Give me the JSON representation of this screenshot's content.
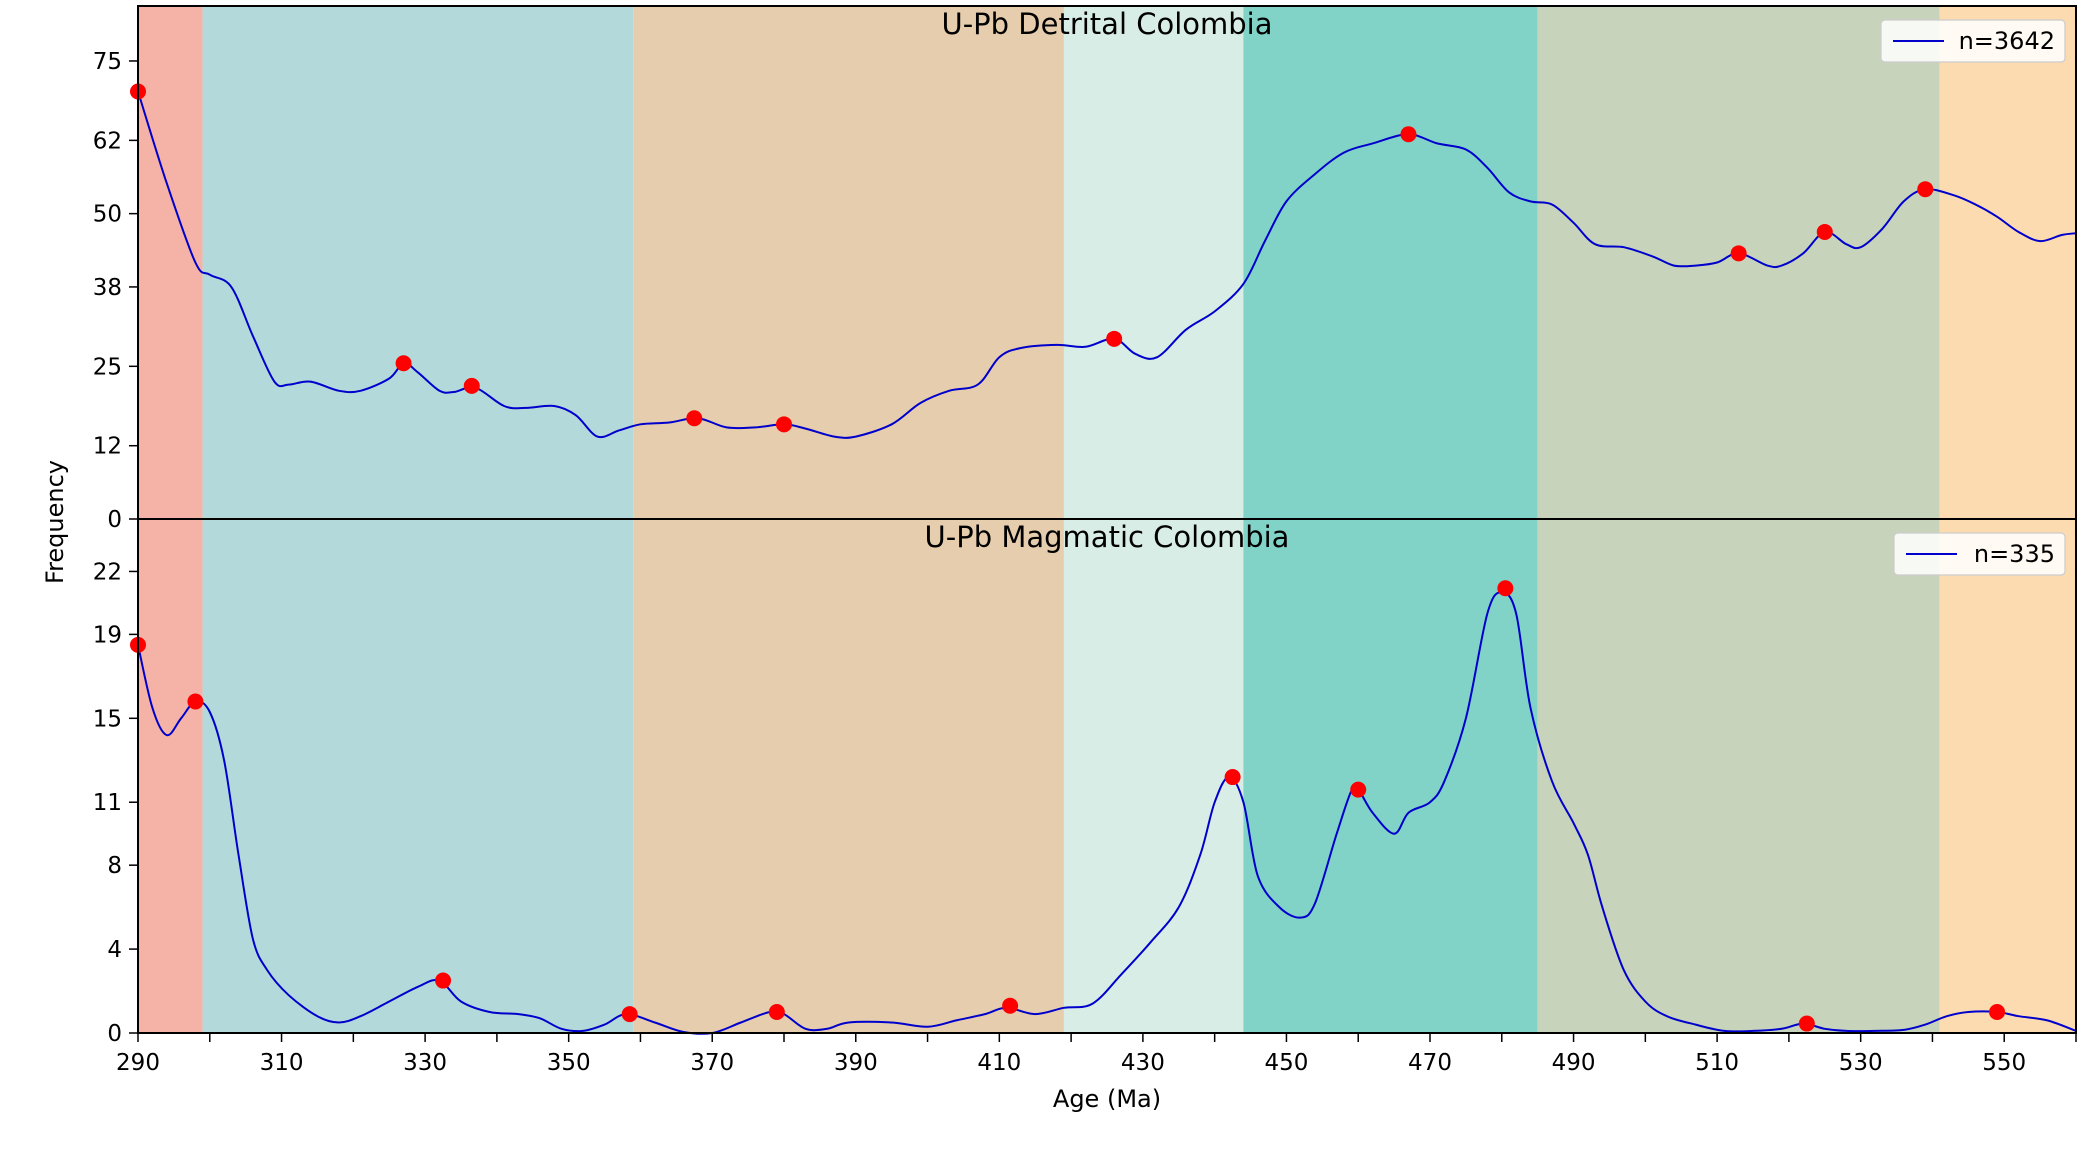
{
  "chart_data": {
    "type": "line",
    "xlabel": "Age (Ma)",
    "ylabel": "Frequency",
    "xlim": [
      290,
      560
    ],
    "x_ticks": [
      290,
      310,
      330,
      350,
      370,
      390,
      410,
      430,
      450,
      470,
      490,
      510,
      530,
      550
    ],
    "x_minor_step": 10,
    "line_color": "#0000cc",
    "peak_color": "#ff0000",
    "bands": [
      {
        "from": 290,
        "to": 299,
        "color": "#f4b3a6"
      },
      {
        "from": 299,
        "to": 359,
        "color": "#b4d9da"
      },
      {
        "from": 359,
        "to": 419,
        "color": "#e6cdad"
      },
      {
        "from": 419,
        "to": 444,
        "color": "#d8ede5"
      },
      {
        "from": 444,
        "to": 485,
        "color": "#81d3c8"
      },
      {
        "from": 485,
        "to": 541,
        "color": "#c7d3bb"
      },
      {
        "from": 541,
        "to": 560,
        "color": "#fddbb0"
      }
    ],
    "panels": [
      {
        "title": "U-Pb Detrital Colombia",
        "legend": "n=3642",
        "ylim": [
          0,
          84
        ],
        "y_ticks": [
          0,
          12,
          25,
          38,
          50,
          62,
          75
        ],
        "curve": [
          [
            290,
            70
          ],
          [
            294,
            55
          ],
          [
            298,
            42
          ],
          [
            300,
            40
          ],
          [
            303,
            38
          ],
          [
            306,
            30
          ],
          [
            309,
            22.5
          ],
          [
            311,
            22
          ],
          [
            314,
            22.5
          ],
          [
            318,
            21
          ],
          [
            321,
            21
          ],
          [
            325,
            23
          ],
          [
            327,
            25.5
          ],
          [
            329,
            24
          ],
          [
            332,
            21
          ],
          [
            334,
            20.8
          ],
          [
            337,
            21.5
          ],
          [
            341,
            18.5
          ],
          [
            344,
            18.2
          ],
          [
            348,
            18.5
          ],
          [
            351,
            17
          ],
          [
            354,
            13.5
          ],
          [
            357,
            14.5
          ],
          [
            360,
            15.5
          ],
          [
            364,
            15.8
          ],
          [
            368,
            16.5
          ],
          [
            372,
            15
          ],
          [
            376,
            15
          ],
          [
            380,
            15.5
          ],
          [
            383,
            14.8
          ],
          [
            387,
            13.5
          ],
          [
            390,
            13.5
          ],
          [
            395,
            15.5
          ],
          [
            399,
            19
          ],
          [
            403,
            21
          ],
          [
            407,
            22
          ],
          [
            410,
            26.5
          ],
          [
            413,
            28
          ],
          [
            418,
            28.5
          ],
          [
            422,
            28.2
          ],
          [
            426,
            29.5
          ],
          [
            429,
            27
          ],
          [
            432,
            26.5
          ],
          [
            436,
            31
          ],
          [
            440,
            34
          ],
          [
            444,
            38.5
          ],
          [
            447,
            45.5
          ],
          [
            450,
            52
          ],
          [
            454,
            56.5
          ],
          [
            458,
            60
          ],
          [
            462,
            61.5
          ],
          [
            467,
            63
          ],
          [
            471,
            61.5
          ],
          [
            475,
            60.5
          ],
          [
            478,
            57.5
          ],
          [
            481,
            53.5
          ],
          [
            484,
            52
          ],
          [
            487,
            51.5
          ],
          [
            490,
            48.5
          ],
          [
            493,
            45
          ],
          [
            497,
            44.5
          ],
          [
            501,
            43
          ],
          [
            504,
            41.5
          ],
          [
            507,
            41.5
          ],
          [
            510,
            42
          ],
          [
            513,
            43.5
          ],
          [
            517,
            41.5
          ],
          [
            519,
            41.5
          ],
          [
            522,
            43.5
          ],
          [
            525,
            47
          ],
          [
            528,
            45
          ],
          [
            530,
            44.5
          ],
          [
            533,
            47.5
          ],
          [
            536,
            52
          ],
          [
            539,
            54
          ],
          [
            543,
            53
          ],
          [
            546,
            51.5
          ],
          [
            549,
            49.5
          ],
          [
            552,
            47
          ],
          [
            555,
            45.5
          ],
          [
            558,
            46.5
          ],
          [
            560,
            46.8
          ]
        ],
        "peaks": [
          [
            290,
            70
          ],
          [
            327,
            25.5
          ],
          [
            336.5,
            21.8
          ],
          [
            367.5,
            16.5
          ],
          [
            380,
            15.5
          ],
          [
            426,
            29.5
          ],
          [
            467,
            63
          ],
          [
            513,
            43.5
          ],
          [
            525,
            47
          ],
          [
            539,
            54
          ]
        ]
      },
      {
        "title": "U-Pb Magmatic Colombia",
        "legend": "n=335",
        "ylim": [
          0,
          24.5
        ],
        "y_ticks": [
          0,
          4,
          8,
          11,
          15,
          19,
          22
        ],
        "curve": [
          [
            290,
            18.5
          ],
          [
            292,
            15.5
          ],
          [
            294,
            14.2
          ],
          [
            296,
            15
          ],
          [
            298,
            15.8
          ],
          [
            300,
            15.3
          ],
          [
            302,
            13
          ],
          [
            304,
            8.5
          ],
          [
            306,
            4.5
          ],
          [
            308,
            3
          ],
          [
            311,
            1.8
          ],
          [
            315,
            0.8
          ],
          [
            318,
            0.5
          ],
          [
            321,
            0.8
          ],
          [
            325,
            1.5
          ],
          [
            329,
            2.2
          ],
          [
            332,
            2.5
          ],
          [
            335,
            1.5
          ],
          [
            339,
            1
          ],
          [
            343,
            0.9
          ],
          [
            346,
            0.7
          ],
          [
            349,
            0.2
          ],
          [
            352,
            0.1
          ],
          [
            355,
            0.4
          ],
          [
            358,
            0.9
          ],
          [
            362,
            0.5
          ],
          [
            366,
            0.05
          ],
          [
            370,
            0
          ],
          [
            374,
            0.5
          ],
          [
            378,
            1
          ],
          [
            380,
            0.9
          ],
          [
            383,
            0.2
          ],
          [
            386,
            0.2
          ],
          [
            389,
            0.5
          ],
          [
            395,
            0.5
          ],
          [
            400,
            0.3
          ],
          [
            404,
            0.6
          ],
          [
            408,
            0.9
          ],
          [
            411,
            1.2
          ],
          [
            415,
            0.9
          ],
          [
            419,
            1.2
          ],
          [
            423,
            1.4
          ],
          [
            427,
            2.8
          ],
          [
            431,
            4.3
          ],
          [
            435,
            6
          ],
          [
            438,
            8.5
          ],
          [
            440,
            11
          ],
          [
            442,
            12.2
          ],
          [
            444,
            11
          ],
          [
            446,
            7.5
          ],
          [
            449,
            6
          ],
          [
            452,
            5.5
          ],
          [
            454,
            6.2
          ],
          [
            457,
            9.5
          ],
          [
            459,
            11.5
          ],
          [
            460,
            11.6
          ],
          [
            462,
            10.5
          ],
          [
            465,
            9.5
          ],
          [
            467,
            10.5
          ],
          [
            470,
            11
          ],
          [
            472,
            12
          ],
          [
            475,
            15
          ],
          [
            478,
            20
          ],
          [
            480,
            21
          ],
          [
            482,
            20
          ],
          [
            484,
            15.5
          ],
          [
            487,
            12
          ],
          [
            490,
            10
          ],
          [
            492,
            8.5
          ],
          [
            494,
            6
          ],
          [
            497,
            3
          ],
          [
            500,
            1.5
          ],
          [
            503,
            0.8
          ],
          [
            507,
            0.4
          ],
          [
            511,
            0.1
          ],
          [
            515,
            0.1
          ],
          [
            519,
            0.2
          ],
          [
            522,
            0.45
          ],
          [
            525,
            0.2
          ],
          [
            528,
            0.1
          ],
          [
            532,
            0.1
          ],
          [
            536,
            0.15
          ],
          [
            539,
            0.4
          ],
          [
            542,
            0.8
          ],
          [
            545,
            1
          ],
          [
            549,
            1
          ],
          [
            552,
            0.8
          ],
          [
            556,
            0.6
          ],
          [
            560,
            0.1
          ]
        ],
        "peaks": [
          [
            290,
            18.5
          ],
          [
            298,
            15.8
          ],
          [
            332.5,
            2.5
          ],
          [
            358.5,
            0.9
          ],
          [
            379,
            1
          ],
          [
            411.5,
            1.3
          ],
          [
            442.5,
            12.2
          ],
          [
            460,
            11.6
          ],
          [
            480.5,
            21.2
          ],
          [
            522.5,
            0.45
          ],
          [
            549,
            1
          ]
        ]
      }
    ]
  }
}
